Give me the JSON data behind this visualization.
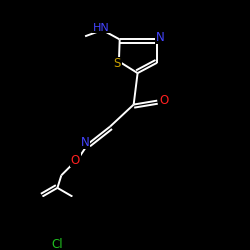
{
  "background_color": "#000000",
  "bond_color": "#ffffff",
  "atom_colors": {
    "N": "#4444ff",
    "O": "#ff2020",
    "S": "#c8a000",
    "Cl": "#20c020",
    "C": "#ffffff"
  },
  "figsize": [
    2.5,
    2.5
  ],
  "dpi": 100
}
